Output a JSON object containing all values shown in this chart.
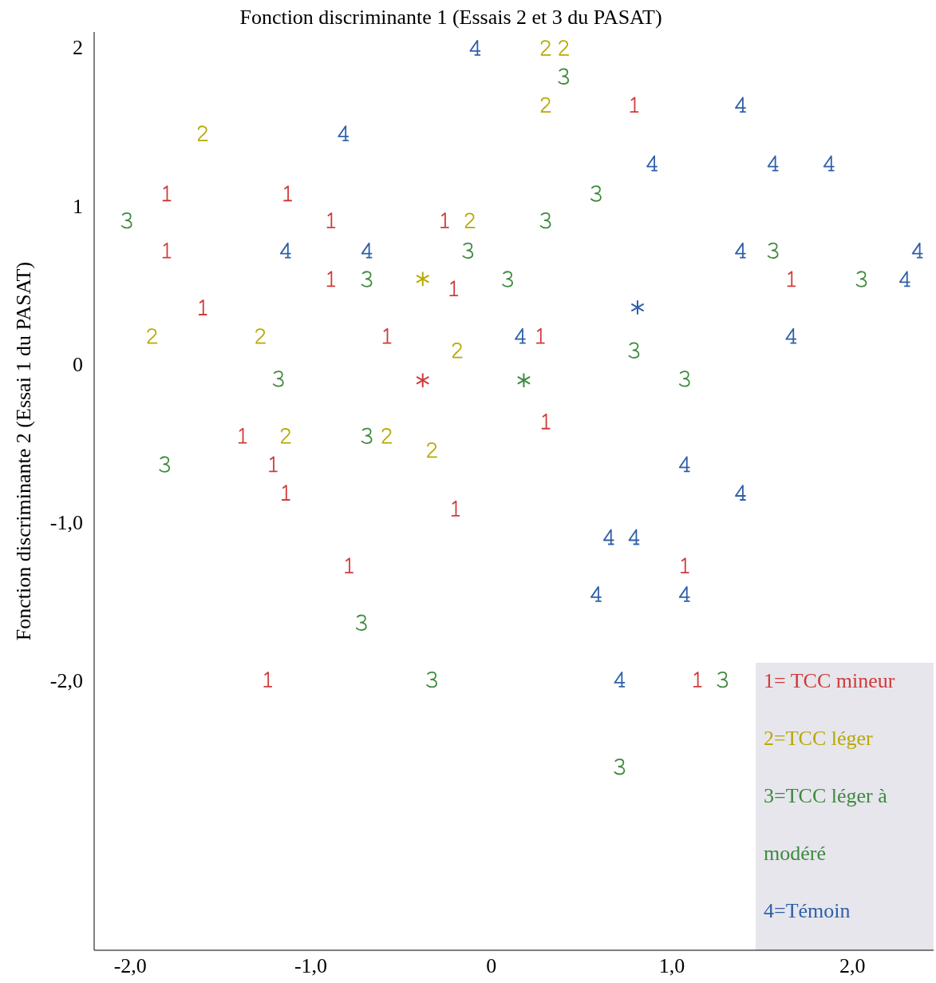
{
  "chart_data": {
    "type": "scatter",
    "title": "Fonction discriminante 1 (Essais 2 et 3 du PASAT)",
    "ylabel": "Fonction discriminante 2 (Essai 1 du PASAT)",
    "xlim": [
      -2.2,
      2.45
    ],
    "ylim": [
      -3.7,
      2.1
    ],
    "xticks": [
      {
        "value": -2,
        "label": "-2,0"
      },
      {
        "value": -1,
        "label": "-1,0"
      },
      0,
      {
        "value": 1,
        "label": "1,0"
      },
      {
        "value": 2,
        "label": "2,0"
      }
    ],
    "yticks": [
      {
        "value": -2,
        "label": "-2,0"
      },
      {
        "value": -1,
        "label": "-1,0"
      },
      0,
      1,
      2
    ],
    "series": [
      {
        "name": "1= TCC mineur",
        "color": "#d03a3a",
        "x": [
          -1.8,
          -1.13,
          -0.89,
          -0.26,
          -1.8,
          -0.89,
          -0.21,
          -1.6,
          -0.58,
          0.27,
          0.79,
          1.66,
          0.3,
          -1.38,
          -1.21,
          -1.14,
          -0.2,
          -0.79,
          1.07,
          -1.24,
          1.14
        ],
        "values": [
          1.08,
          1.08,
          0.91,
          0.91,
          0.72,
          0.54,
          0.48,
          0.36,
          0.18,
          0.18,
          1.64,
          0.54,
          -0.36,
          -0.45,
          -0.63,
          -0.81,
          -0.91,
          -1.27,
          -1.27,
          -1.99,
          -1.99
        ]
      },
      {
        "name": "2=TCC léger",
        "color": "#b8a800",
        "x": [
          0.3,
          0.4,
          0.3,
          -1.6,
          -0.12,
          -1.88,
          -1.28,
          -0.19,
          -1.14,
          -0.58,
          -0.33
        ],
        "values": [
          2.0,
          2.0,
          1.64,
          1.46,
          0.91,
          0.18,
          0.18,
          0.09,
          -0.45,
          -0.45,
          -0.54
        ]
      },
      {
        "name": "3=TCC léger à modéré",
        "color": "#3d8a3d",
        "x": [
          0.4,
          0.58,
          0.3,
          -2.02,
          -0.13,
          -0.69,
          0.09,
          1.56,
          2.05,
          0.79,
          -1.18,
          1.07,
          -0.69,
          -1.81,
          -0.72,
          -0.33,
          1.28,
          0.71
        ],
        "values": [
          1.82,
          1.08,
          0.91,
          0.91,
          0.72,
          0.54,
          0.54,
          0.72,
          0.54,
          0.09,
          -0.09,
          -0.09,
          -0.45,
          -0.63,
          -1.63,
          -1.99,
          -1.99,
          -2.54
        ]
      },
      {
        "name": "4=Témoin",
        "color": "#2f5fa8",
        "x": [
          -0.09,
          1.38,
          -0.82,
          0.89,
          1.56,
          1.87,
          -1.14,
          -0.69,
          1.38,
          2.36,
          2.29,
          0.16,
          1.66,
          1.07,
          1.38,
          0.65,
          0.79,
          0.58,
          1.07,
          0.71
        ],
        "values": [
          2.0,
          1.64,
          1.46,
          1.27,
          1.27,
          1.27,
          0.72,
          0.72,
          0.72,
          0.72,
          0.54,
          0.18,
          0.18,
          -0.63,
          -0.81,
          -1.09,
          -1.09,
          -1.45,
          -1.45,
          -1.99
        ]
      },
      {
        "color": "#d03a3a",
        "marker": "cross",
        "x": [
          -0.38
        ],
        "values": [
          -0.1
        ]
      },
      {
        "color": "#b8a800",
        "marker": "cross",
        "x": [
          -0.38
        ],
        "values": [
          0.54
        ]
      },
      {
        "color": "#3d8a3d",
        "marker": "cross",
        "x": [
          0.18
        ],
        "values": [
          -0.1
        ]
      },
      {
        "color": "#2f5fa8",
        "marker": "cross",
        "x": [
          0.81
        ],
        "values": [
          0.36
        ]
      }
    ]
  }
}
